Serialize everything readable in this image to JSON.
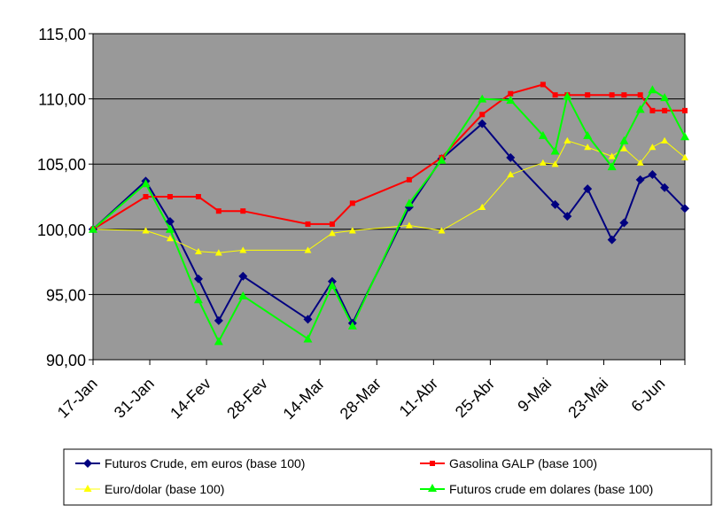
{
  "chart_data": {
    "type": "line",
    "title": "",
    "xlabel": "",
    "ylabel": "",
    "ylim": [
      90,
      115
    ],
    "y_ticks": [
      "90,00",
      "95,00",
      "100,00",
      "105,00",
      "110,00",
      "115,00"
    ],
    "y_tick_values": [
      90,
      95,
      100,
      105,
      110,
      115
    ],
    "x_range": [
      0,
      146
    ],
    "x_tick_positions": [
      0,
      14,
      28,
      42,
      56,
      70,
      84,
      98,
      112,
      126,
      140
    ],
    "x_tick_labels": [
      "17-Jan",
      "31-Jan",
      "14-Fev",
      "28-Fev",
      "14-Mar",
      "28-Mar",
      "11-Abr",
      "25-Abr",
      "9-Mai",
      "23-Mai",
      "6-Jun"
    ],
    "plot_background": "#999999",
    "grid": true,
    "legend_position": "bottom",
    "series": [
      {
        "name": "Futuros Crude, em euros (base 100)",
        "color": "#000080",
        "marker": "diamond",
        "x": [
          0,
          13,
          19,
          26,
          31,
          37,
          53,
          59,
          64,
          78,
          86,
          96,
          103,
          114,
          117,
          122,
          128,
          131,
          135,
          138,
          141,
          146
        ],
        "y": [
          100,
          103.7,
          100.6,
          96.2,
          93,
          96.4,
          93.1,
          96,
          92.8,
          101.7,
          105.4,
          108.1,
          105.5,
          101.9,
          101,
          103.1,
          99.2,
          100.5,
          103.8,
          104.2,
          103.2,
          101.6
        ]
      },
      {
        "name": "Gasolina GALP (base 100)",
        "color": "#ff0000",
        "marker": "square",
        "x": [
          0,
          13,
          19,
          26,
          31,
          37,
          53,
          59,
          64,
          78,
          86,
          96,
          103,
          111,
          114,
          117,
          122,
          128,
          131,
          135,
          138,
          141,
          146
        ],
        "y": [
          100,
          102.5,
          102.5,
          102.5,
          101.4,
          101.4,
          100.4,
          100.4,
          102,
          103.8,
          105.5,
          108.8,
          110.4,
          111.1,
          110.3,
          110.3,
          110.3,
          110.3,
          110.3,
          110.3,
          109.1,
          109.1,
          109.1
        ]
      },
      {
        "name": "Euro/dolar (base 100)",
        "color": "#ffff00",
        "marker": "triangle",
        "x": [
          0,
          13,
          19,
          26,
          31,
          37,
          53,
          59,
          64,
          78,
          86,
          96,
          103,
          111,
          114,
          117,
          122,
          128,
          131,
          135,
          138,
          141,
          146
        ],
        "y": [
          100,
          99.9,
          99.3,
          98.3,
          98.2,
          98.4,
          98.4,
          99.7,
          99.9,
          100.3,
          99.9,
          101.7,
          104.2,
          105.1,
          105,
          106.8,
          106.3,
          105.6,
          106.2,
          105.1,
          106.3,
          106.8,
          105.5
        ]
      },
      {
        "name": "Futuros crude em dolares (base 100)",
        "color": "#00ff00",
        "marker": "triangle",
        "x": [
          0,
          13,
          19,
          26,
          31,
          37,
          53,
          59,
          64,
          78,
          86,
          96,
          103,
          111,
          114,
          117,
          122,
          128,
          131,
          135,
          138,
          141,
          146
        ],
        "y": [
          100,
          103.5,
          100,
          94.6,
          91.4,
          94.9,
          91.6,
          95.7,
          92.6,
          102,
          105.3,
          110,
          109.9,
          107.2,
          106,
          110.2,
          107.2,
          104.8,
          106.8,
          109.2,
          110.7,
          110.1,
          107.1
        ]
      }
    ]
  }
}
